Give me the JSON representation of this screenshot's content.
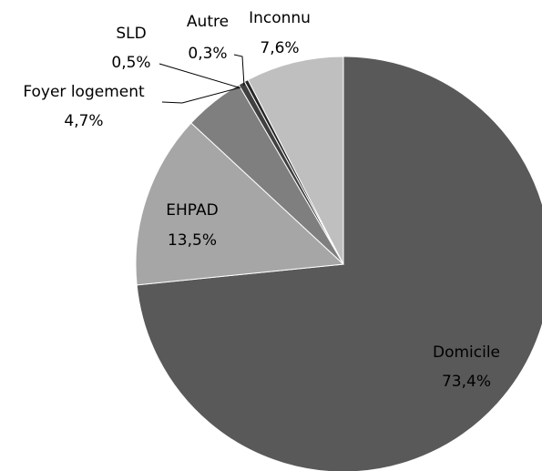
{
  "chart_data": {
    "type": "pie",
    "categories": [
      "Domicile",
      "EHPAD",
      "Foyer logement",
      "SLD",
      "Autre",
      "Inconnu"
    ],
    "values": [
      73.4,
      13.5,
      4.7,
      0.5,
      0.3,
      7.6
    ],
    "value_labels": [
      "73,4%",
      "13,5%",
      "4,7%",
      "0,5%",
      "0,3%",
      "7,6%"
    ],
    "colors": [
      "#595959",
      "#a6a6a6",
      "#7f7f7f",
      "#404040",
      "#262626",
      "#bfbfbf"
    ]
  }
}
